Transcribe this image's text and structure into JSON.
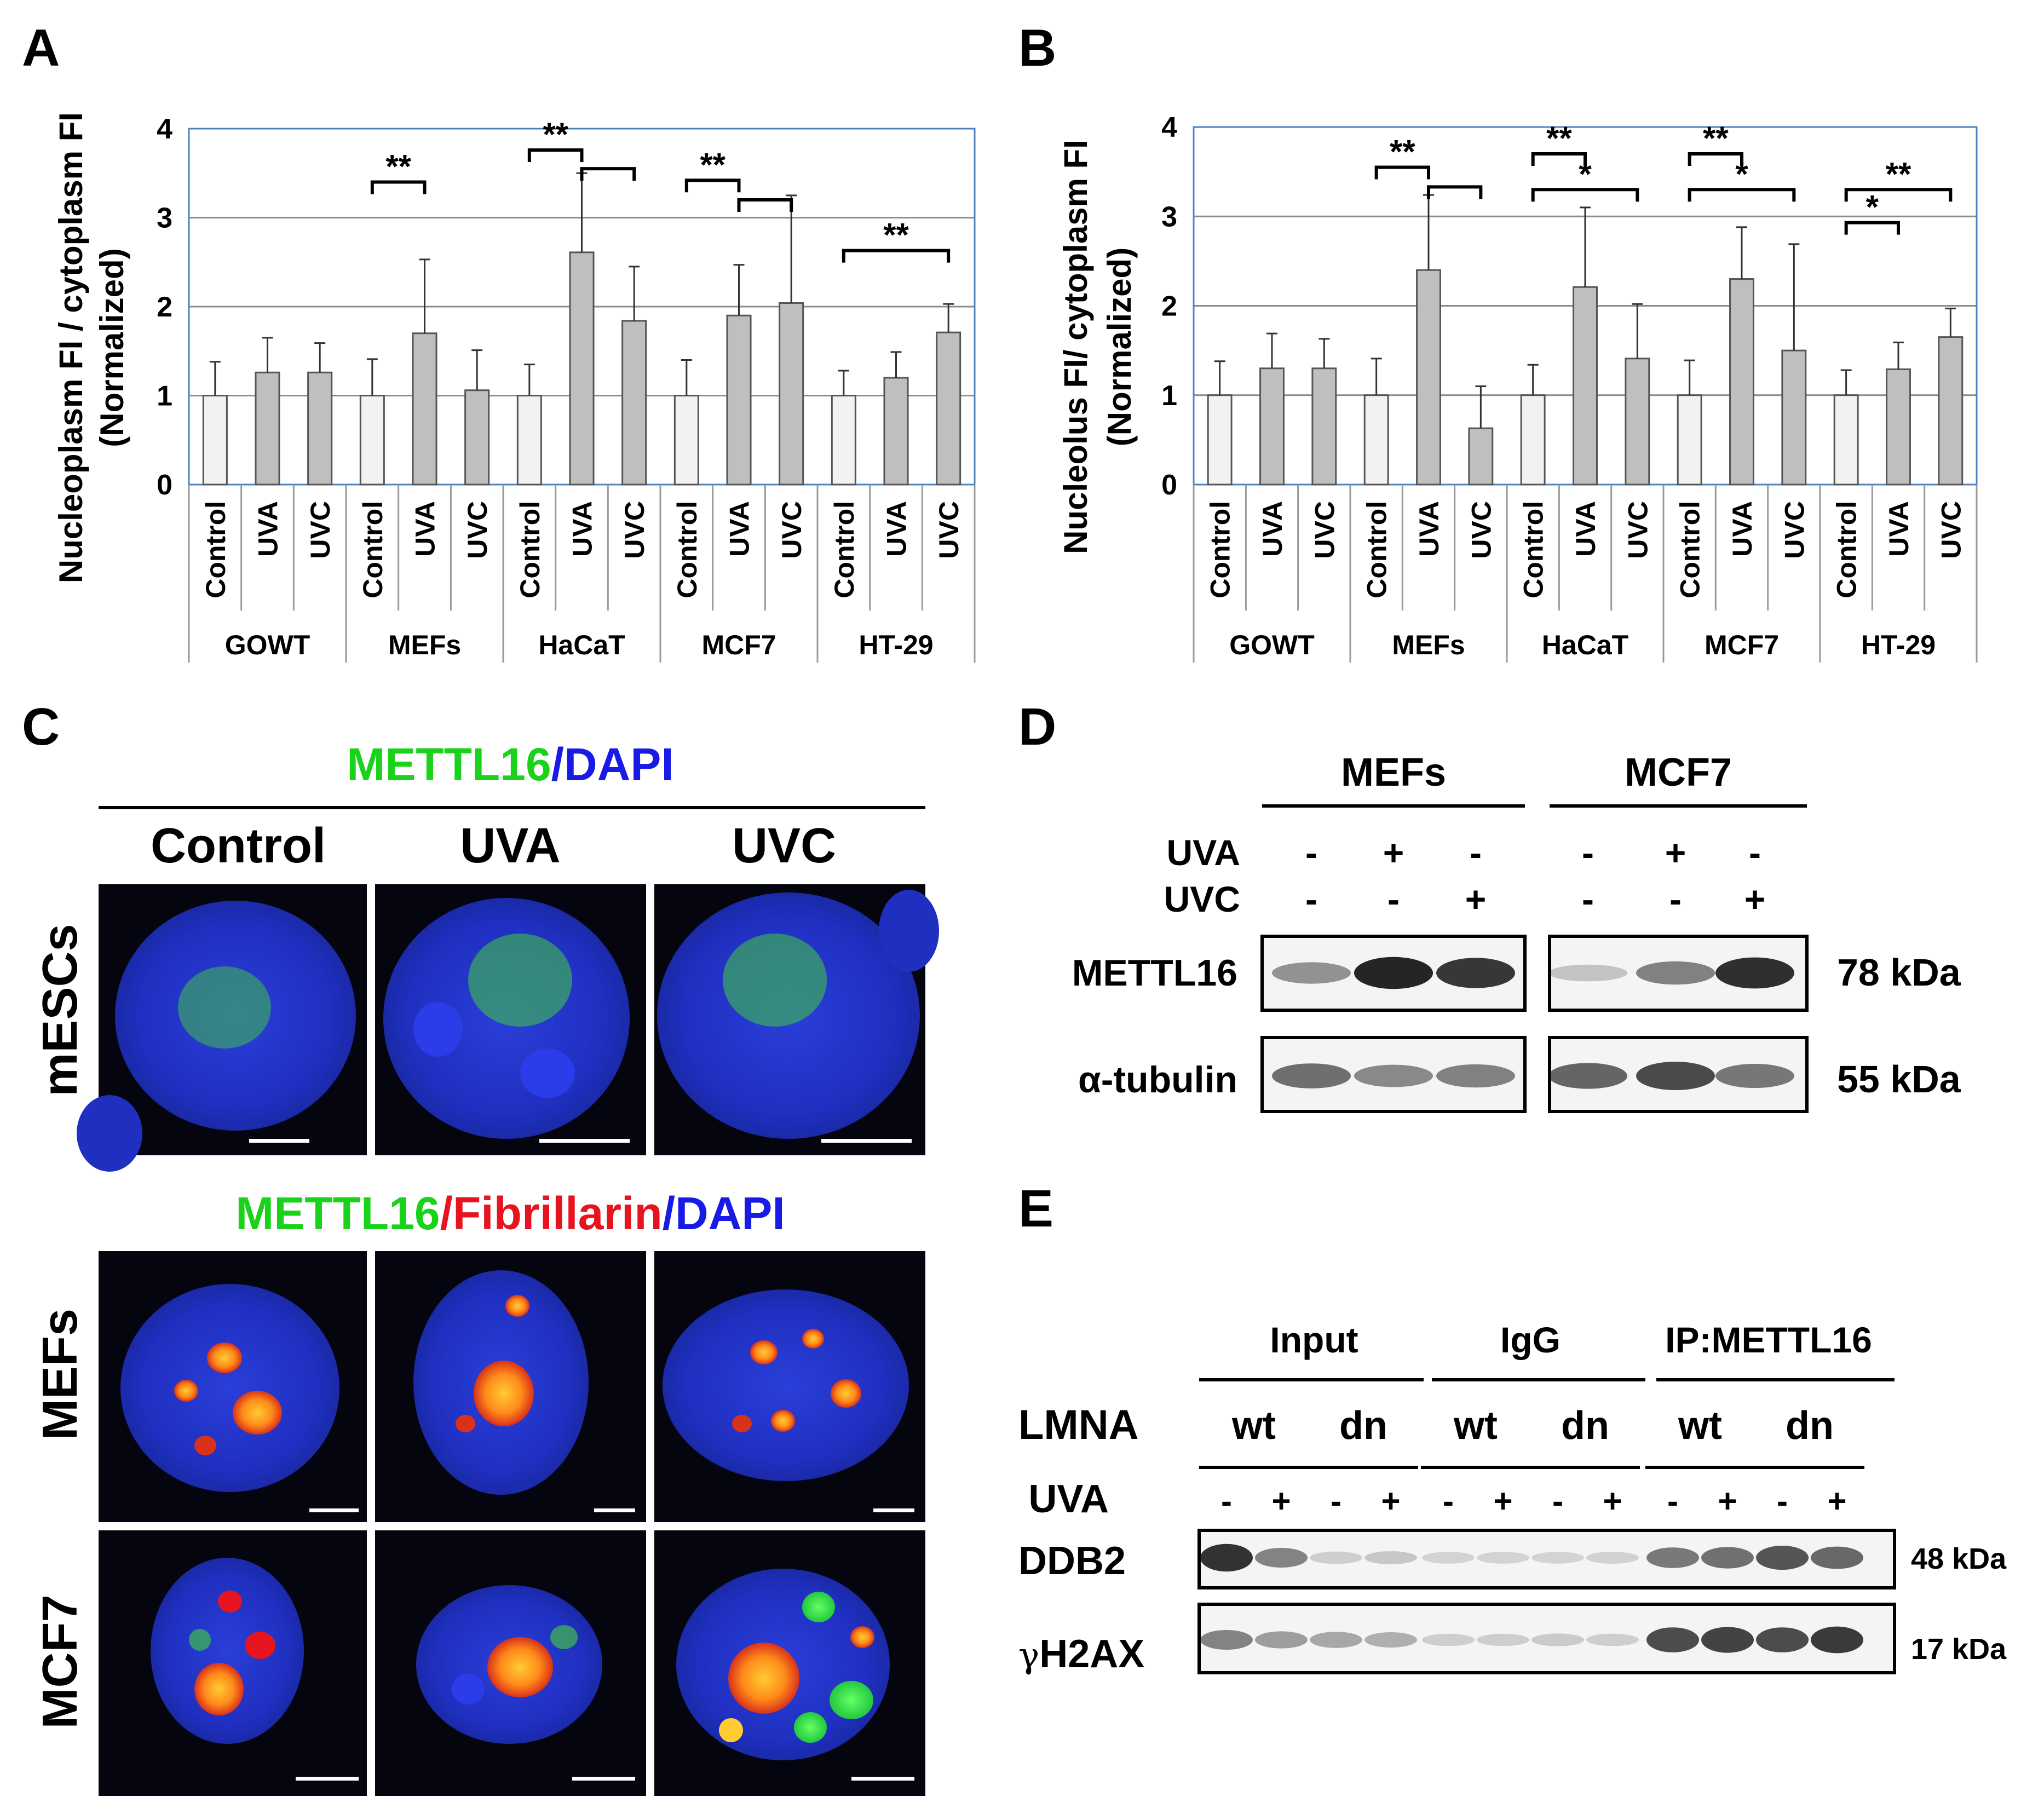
{
  "panels": {
    "A": {
      "letter": "A",
      "chart_data": {
        "type": "bar",
        "ylabel_line1": "Nucleoplasm FI / cytoplasm FI",
        "ylabel_line2": "(Normalized)",
        "ylim": [
          0,
          4
        ],
        "yticks": [
          "0",
          "1",
          "2",
          "3",
          "4"
        ],
        "conditions": [
          "Control",
          "UVA",
          "UVC"
        ],
        "groups": [
          "GOWT",
          "MEFs",
          "HaCaT",
          "MCF7",
          "HT-29"
        ],
        "values": [
          [
            1.0,
            1.26,
            1.26
          ],
          [
            1.0,
            1.7,
            1.06
          ],
          [
            1.0,
            2.61,
            1.84
          ],
          [
            1.0,
            1.9,
            2.04
          ],
          [
            1.0,
            1.2,
            1.71
          ]
        ],
        "errors": [
          [
            0.38,
            0.39,
            0.33
          ],
          [
            0.41,
            0.83,
            0.45
          ],
          [
            0.35,
            0.89,
            0.61
          ],
          [
            0.4,
            0.57,
            1.21
          ],
          [
            0.28,
            0.29,
            0.32
          ]
        ],
        "significance": [
          {
            "group": 1,
            "from": 0,
            "to": 1,
            "label": "**",
            "level": 3.4
          },
          {
            "group": 2,
            "from": 0,
            "to": 1,
            "label": "**",
            "level": 3.76
          },
          {
            "group": 2,
            "from": 1,
            "to": 2,
            "label": "",
            "level": 3.55
          },
          {
            "group": 3,
            "from": 0,
            "to": 1,
            "label": "**",
            "level": 3.42
          },
          {
            "group": 3,
            "from": 1,
            "to": 2,
            "label": "",
            "level": 3.2
          },
          {
            "group": 4,
            "from": 0,
            "to": 2,
            "label": "**",
            "level": 2.63
          }
        ]
      }
    },
    "B": {
      "letter": "B",
      "chart_data": {
        "type": "bar",
        "ylabel_line1": "Nucleolus FI/ cytoplasm FI",
        "ylabel_line2": "(Normalized)",
        "ylim": [
          0,
          4
        ],
        "yticks": [
          "0",
          "1",
          "2",
          "3",
          "4"
        ],
        "conditions": [
          "Control",
          "UVA",
          "UVC"
        ],
        "groups": [
          "GOWT",
          "MEFs",
          "HaCaT",
          "MCF7",
          "HT-29"
        ],
        "values": [
          [
            1.0,
            1.3,
            1.3
          ],
          [
            1.0,
            2.4,
            0.63
          ],
          [
            1.0,
            2.21,
            1.41
          ],
          [
            1.0,
            2.3,
            1.5
          ],
          [
            1.0,
            1.29,
            1.65
          ]
        ],
        "errors": [
          [
            0.38,
            0.39,
            0.33
          ],
          [
            0.41,
            0.84,
            0.47
          ],
          [
            0.34,
            0.89,
            0.61
          ],
          [
            0.39,
            0.58,
            1.19
          ],
          [
            0.28,
            0.3,
            0.32
          ]
        ],
        "significance": [
          {
            "group": 1,
            "from": 0,
            "to": 1,
            "label": "**",
            "level": 3.55
          },
          {
            "group": 1,
            "from": 1,
            "to": 2,
            "label": "",
            "level": 3.33
          },
          {
            "group": 2,
            "from": 0,
            "to": 1,
            "label": "**",
            "level": 3.7
          },
          {
            "group": 2,
            "from": 0,
            "to": 2,
            "label": "*",
            "level": 3.3
          },
          {
            "group": 3,
            "from": 0,
            "to": 1,
            "label": "**",
            "level": 3.7
          },
          {
            "group": 3,
            "from": 0,
            "to": 2,
            "label": "*",
            "level": 3.3
          },
          {
            "group": 4,
            "from": 0,
            "to": 2,
            "label": "**",
            "level": 3.3
          },
          {
            "group": 4,
            "from": 0,
            "to": 1,
            "label": "*",
            "level": 2.93
          }
        ]
      }
    },
    "C": {
      "letter": "C",
      "title1": {
        "a": "METTL16",
        "b": "/DAPI"
      },
      "title2": {
        "a": "METTL16",
        "b": "/Fibrillarin",
        "c": "/DAPI"
      },
      "columns": [
        "Control",
        "UVA",
        "UVC"
      ],
      "rows": [
        "mESCs",
        "MEFs",
        "MCF7"
      ]
    },
    "D": {
      "letter": "D",
      "groups": [
        "MEFs",
        "MCF7"
      ],
      "treatments": [
        {
          "label": "UVA",
          "signs": [
            "-",
            "+",
            "-",
            "-",
            "+",
            "-"
          ]
        },
        {
          "label": "UVC",
          "signs": [
            "-",
            "-",
            "+",
            "-",
            "-",
            "+"
          ]
        }
      ],
      "bands": [
        {
          "label": "METTL16",
          "size": "78 kDa",
          "intensity": [
            0.35,
            0.95,
            0.85,
            0.08,
            0.45,
            0.9
          ]
        },
        {
          "label": "α-tubulin",
          "size": "55 kDa",
          "intensity": [
            0.55,
            0.4,
            0.45,
            0.6,
            0.75,
            0.5
          ]
        }
      ]
    },
    "E": {
      "letter": "E",
      "groups": [
        "Input",
        "IgG",
        "IP:METTL16"
      ],
      "lmna_label": "LMNA",
      "lmna": [
        "wt",
        "dn",
        "wt",
        "dn",
        "wt",
        "dn"
      ],
      "uva_label": "UVA",
      "uva": [
        "-",
        "+",
        "-",
        "+",
        "-",
        "+",
        "-",
        "+",
        "-",
        "+",
        "-",
        "+"
      ],
      "bands": [
        {
          "label": "DDB2",
          "size": "48 kDa",
          "intensity": [
            0.95,
            0.5,
            0.08,
            0.12,
            0.05,
            0.05,
            0.05,
            0.06,
            0.55,
            0.6,
            0.75,
            0.65
          ]
        },
        {
          "label": "H2AX",
          "greek": "γ",
          "size": "17 kDa",
          "intensity": [
            0.5,
            0.35,
            0.3,
            0.25,
            0.08,
            0.08,
            0.1,
            0.08,
            0.8,
            0.85,
            0.8,
            0.9
          ]
        }
      ]
    },
    "colors": {
      "green": "#19d219",
      "blue": "#1a1ae6",
      "red": "#e6141e",
      "bar_control": "#f2f2f2",
      "bar_treated": "#bfbfbf",
      "frame": "#4f81bd",
      "gridline": "#8c8c8c"
    }
  }
}
